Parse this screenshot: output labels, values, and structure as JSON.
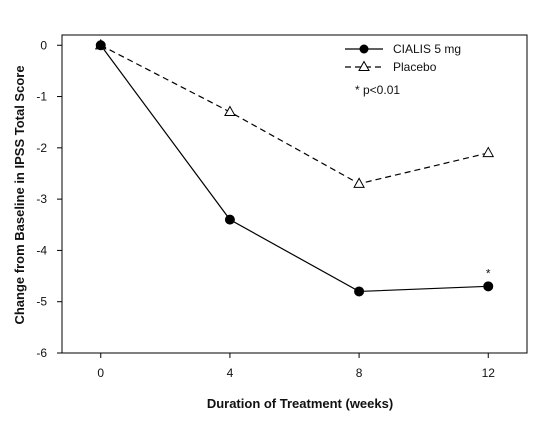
{
  "chart_data": {
    "type": "line",
    "title": "",
    "xlabel": "Duration of Treatment (weeks)",
    "ylabel": "Change from Baseline in IPSS Total Score",
    "x": [
      0,
      4,
      8,
      12
    ],
    "xticks": [
      "0",
      "4",
      "8",
      "12"
    ],
    "yticks": [
      "0",
      "-1",
      "-2",
      "-3",
      "-4",
      "-5",
      "-6"
    ],
    "xlim": [
      -1.2,
      13.2
    ],
    "ylim": [
      -6,
      0.2
    ],
    "grid": false,
    "legend_position": "top-right",
    "series": [
      {
        "name": "CIALIS 5 mg",
        "values": [
          0,
          -3.4,
          -4.8,
          -4.7
        ],
        "marker": "filled-circle",
        "line_style": "solid",
        "color": "#000000"
      },
      {
        "name": "Placebo",
        "values": [
          0,
          -1.3,
          -2.7,
          -2.1
        ],
        "marker": "open-triangle",
        "line_style": "dashed",
        "color": "#000000"
      }
    ],
    "annotations": [
      {
        "text": "*",
        "x": 12,
        "y": -4.7,
        "series": "CIALIS 5 mg"
      }
    ],
    "legend_note": "* p<0.01"
  }
}
